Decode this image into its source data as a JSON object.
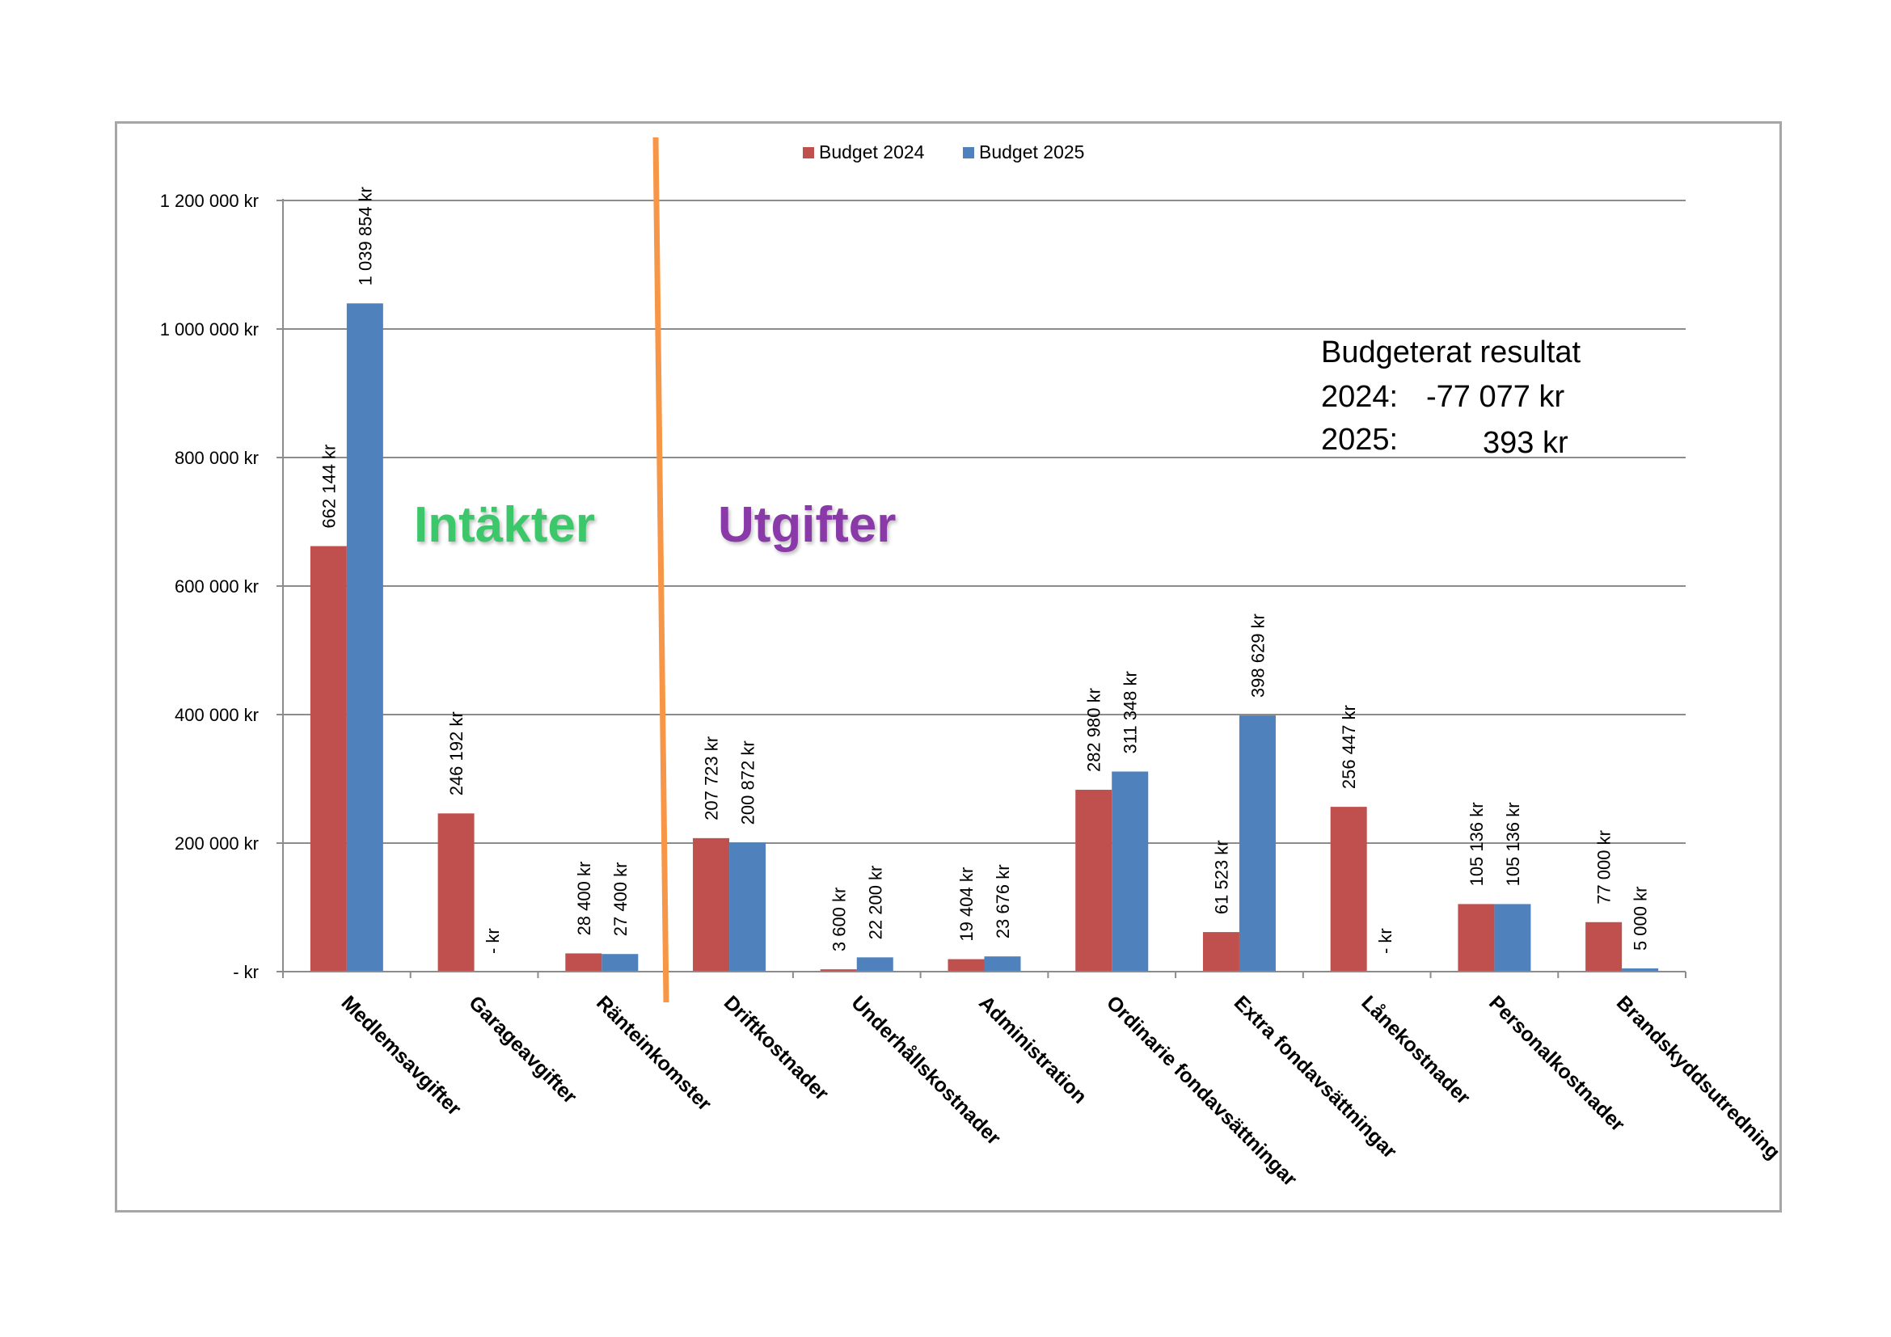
{
  "chart_data": {
    "type": "bar",
    "categories": [
      "Medlemsavgifter",
      "Garageavgifter",
      "Ränteinkomster",
      "Driftkostnader",
      "Underhållskostnader",
      "Administration",
      "Ordinarie fondavsättningar",
      "Extra fondavsättningar",
      "Lånekostnader",
      "Personalkostnader",
      "Brandskyddsutredning"
    ],
    "series": [
      {
        "name": "Budget 2024",
        "color": "#c0504d",
        "values": [
          662144,
          246192,
          28400,
          207723,
          3600,
          19404,
          282980,
          61523,
          256447,
          105136,
          77000
        ],
        "labels": [
          "662 144 kr",
          "246 192 kr",
          "28 400 kr",
          "207 723 kr",
          "3 600 kr",
          "19 404 kr",
          "282 980 kr",
          "61 523 kr",
          "256 447 kr",
          "105 136 kr",
          "77 000 kr"
        ]
      },
      {
        "name": "Budget 2025",
        "color": "#4f81bd",
        "values": [
          1039854,
          0,
          27400,
          200872,
          22200,
          23676,
          311348,
          398629,
          0,
          105136,
          5000
        ],
        "labels": [
          "1 039 854 kr",
          "-  kr",
          "27 400 kr",
          "200 872 kr",
          "22 200 kr",
          "23 676 kr",
          "311 348 kr",
          "398 629 kr",
          "-  kr",
          "105 136 kr",
          "5 000 kr"
        ]
      }
    ],
    "ylim": [
      0,
      1200000
    ],
    "yticks": [
      0,
      200000,
      400000,
      600000,
      800000,
      1000000,
      1200000
    ],
    "ytick_labels": [
      "-  kr",
      "200 000 kr",
      "400 000 kr",
      "600 000 kr",
      "800 000 kr",
      "1 000 000 kr",
      "1 200 000 kr"
    ],
    "grid": true,
    "legend_position": "top-center",
    "divider_color": "#f79646"
  },
  "annotations": {
    "result_title": "Budgeterat resultat",
    "result_2024_label": "2024:",
    "result_2024_value": "-77 077 kr",
    "result_2025_label": "2025:",
    "result_2025_value": "393 kr",
    "section_income": "Intäkter",
    "section_expenses": "Utgifter"
  }
}
